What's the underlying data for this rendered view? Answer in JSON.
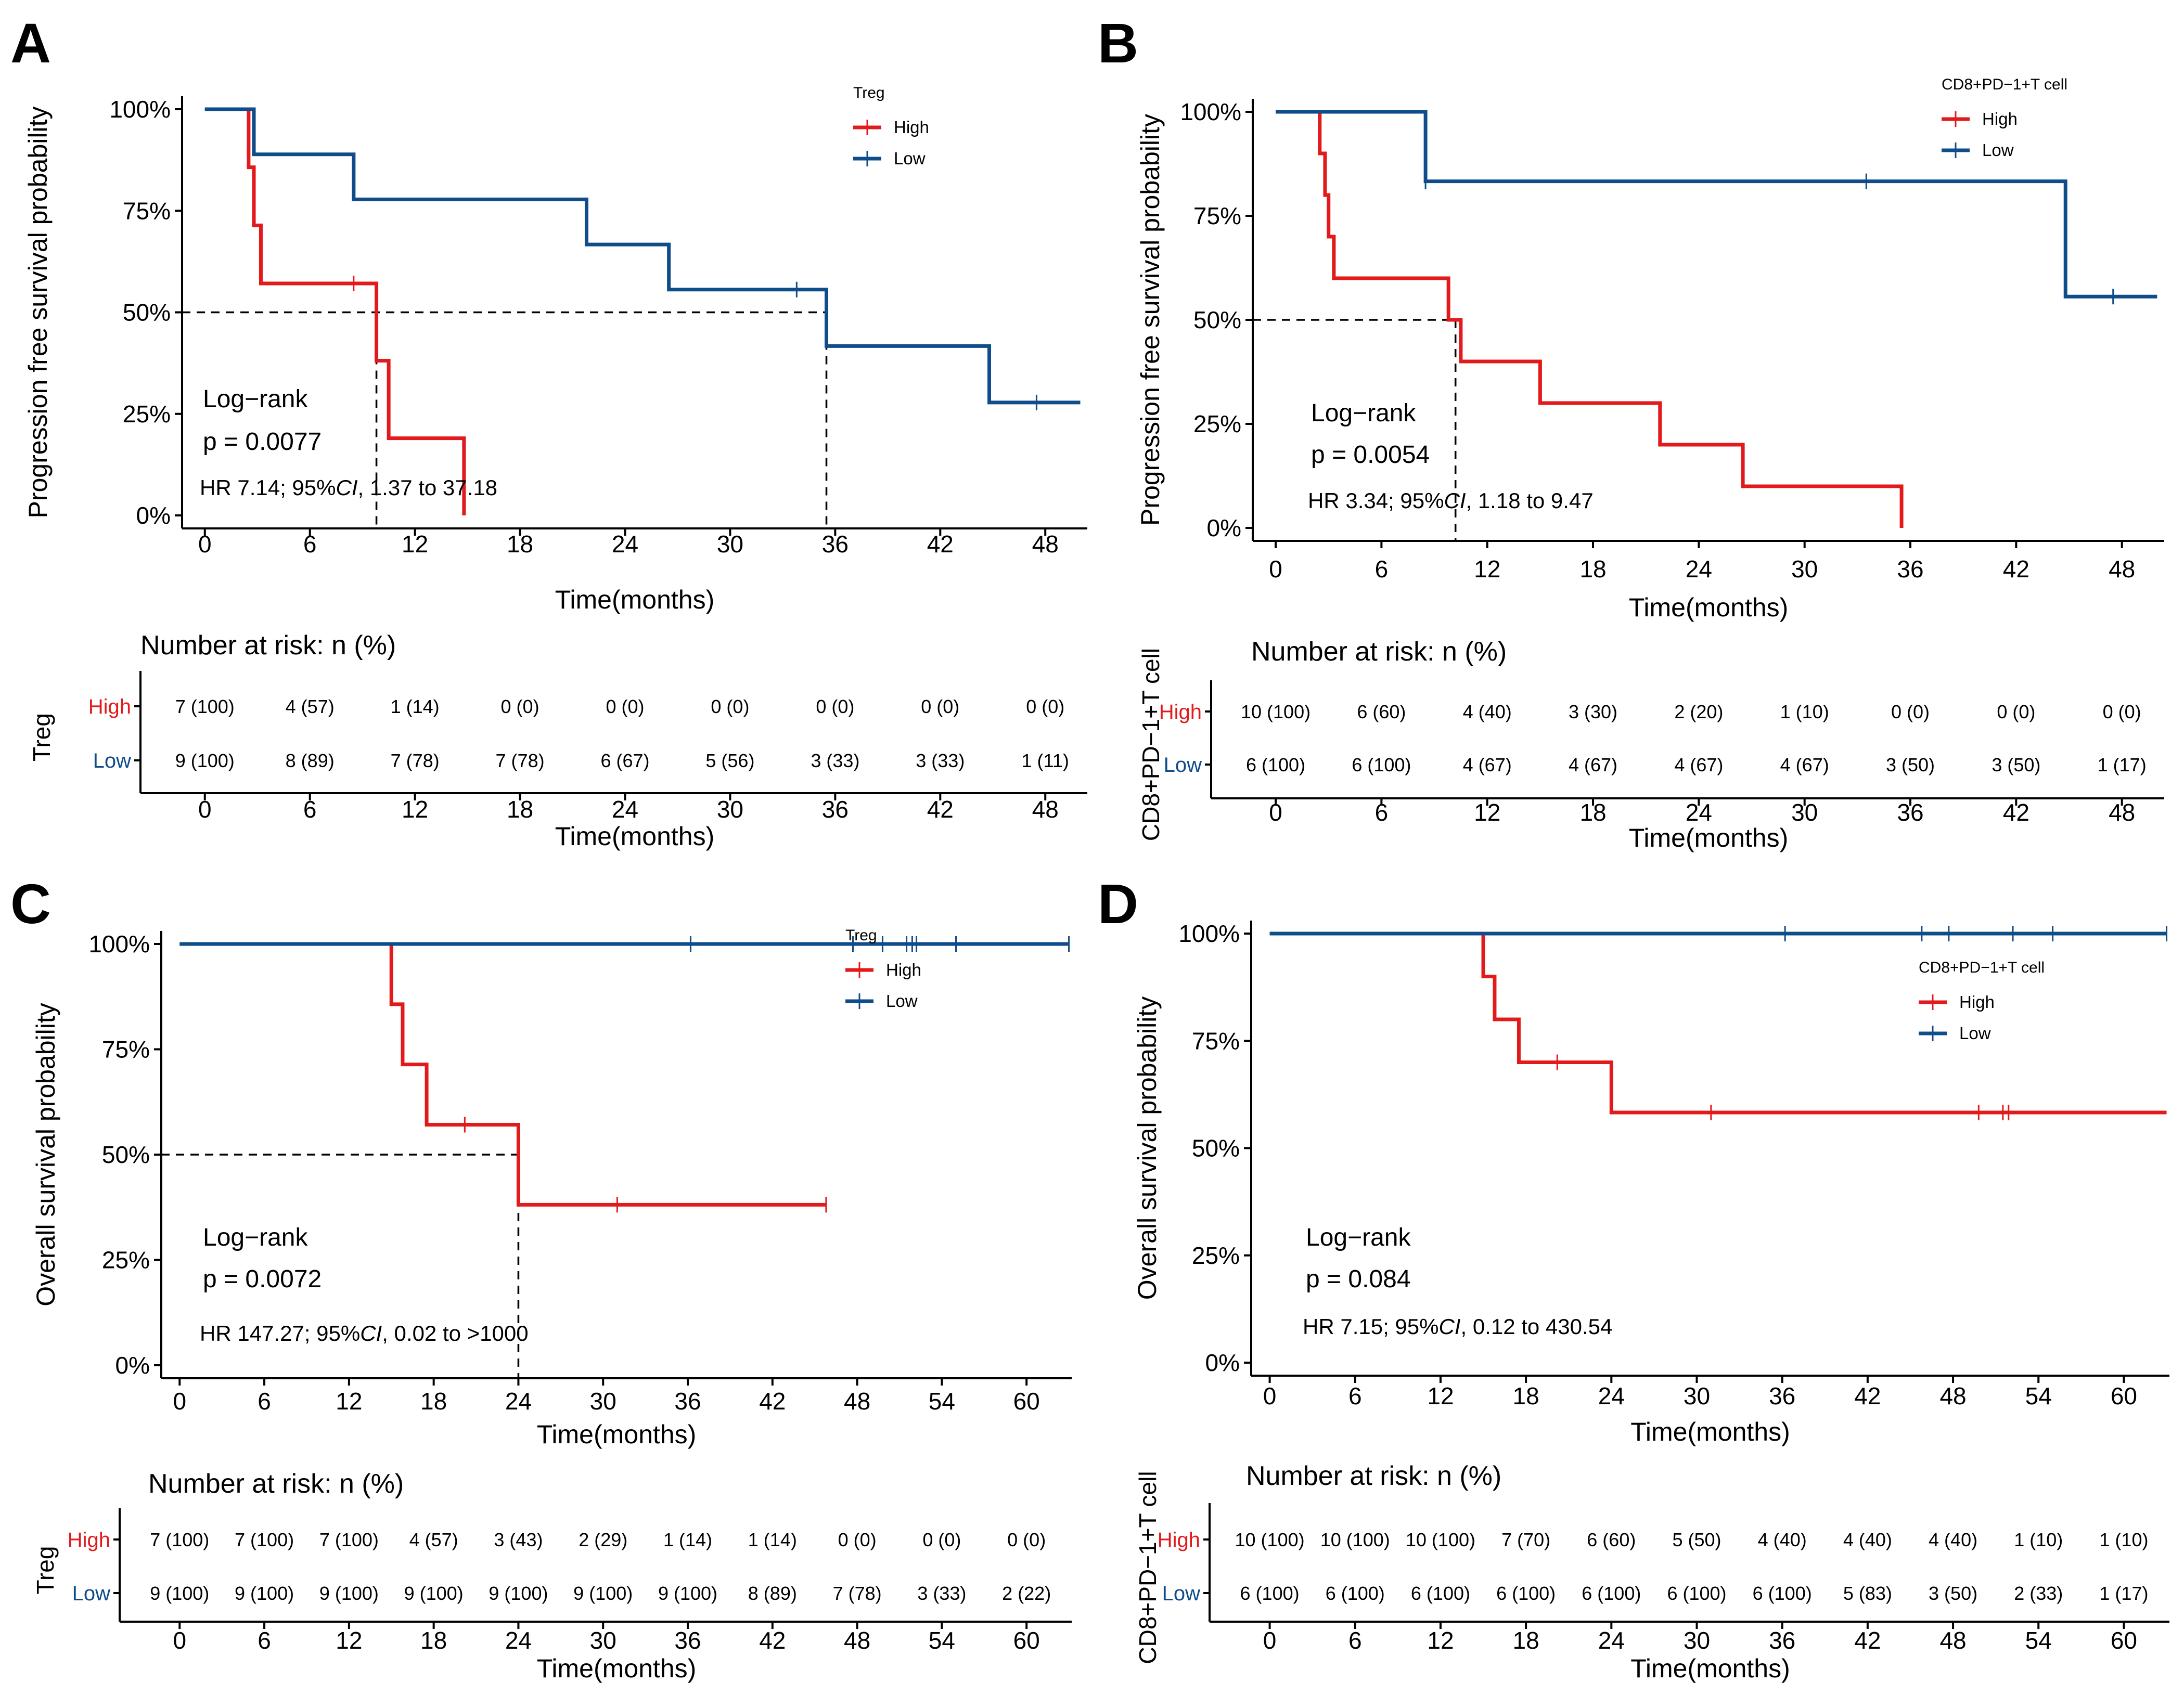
{
  "colors": {
    "high": "#e31a1c",
    "low": "#0f4c8a",
    "axis": "#000000"
  },
  "panels": [
    {
      "id": "A",
      "label": "A",
      "ylabel": "Progression free survival probability",
      "xlabel": "Time(months)",
      "xticks": [
        0,
        6,
        12,
        18,
        24,
        30,
        36,
        42,
        48
      ],
      "yticks": [
        "0%",
        "25%",
        "50%",
        "75%",
        "100%"
      ],
      "legend_title": "Treg",
      "legend_labels": [
        "High",
        "Low"
      ],
      "logrank_label": "Log−rank",
      "p_text": "p = 0.0077",
      "hr_text": "HR 7.14; 95%CI, 1.37 to 37.18",
      "risk_title": "Number at risk: n (%)",
      "risk_ylabel": "Treg",
      "risk_high": [
        "7 (100)",
        "4 (57)",
        "1 (14)",
        "0 (0)",
        "0 (0)",
        "0 (0)",
        "0 (0)",
        "0 (0)",
        "0 (0)"
      ],
      "risk_low": [
        "9 (100)",
        "8 (89)",
        "7 (78)",
        "7 (78)",
        "6 (67)",
        "5 (56)",
        "3 (33)",
        "3 (33)",
        "1 (11)"
      ]
    },
    {
      "id": "B",
      "label": "B",
      "ylabel": "Progression free survival probability",
      "xlabel": "Time(months)",
      "xticks": [
        0,
        6,
        12,
        18,
        24,
        30,
        36,
        42,
        48
      ],
      "yticks": [
        "0%",
        "25%",
        "50%",
        "75%",
        "100%"
      ],
      "legend_title": "CD8+PD−1+T cell",
      "legend_labels": [
        "High",
        "Low"
      ],
      "logrank_label": "Log−rank",
      "p_text": "p = 0.0054",
      "hr_text": "HR 3.34; 95%CI, 1.18 to 9.47",
      "risk_title": "Number at risk: n (%)",
      "risk_ylabel": "CD8+PD−1+T cell",
      "risk_high": [
        "10 (100)",
        "6 (60)",
        "4 (40)",
        "3 (30)",
        "2 (20)",
        "1 (10)",
        "0 (0)",
        "0 (0)",
        "0 (0)"
      ],
      "risk_low": [
        "6 (100)",
        "6 (100)",
        "4 (67)",
        "4 (67)",
        "4 (67)",
        "4 (67)",
        "3 (50)",
        "3 (50)",
        "1 (17)"
      ]
    },
    {
      "id": "C",
      "label": "C",
      "ylabel": "Overall survival probability",
      "xlabel": "Time(months)",
      "xticks": [
        0,
        6,
        12,
        18,
        24,
        30,
        36,
        42,
        48,
        54,
        60
      ],
      "yticks": [
        "0%",
        "25%",
        "50%",
        "75%",
        "100%"
      ],
      "legend_title": "Treg",
      "legend_labels": [
        "High",
        "Low"
      ],
      "logrank_label": "Log−rank",
      "p_text": "p = 0.0072",
      "hr_text": "HR 147.27; 95%CI,  0.02 to >1000",
      "risk_title": "Number at risk: n (%)",
      "risk_ylabel": "Treg",
      "risk_high": [
        "7 (100)",
        "7 (100)",
        "7 (100)",
        "4 (57)",
        "3 (43)",
        "2 (29)",
        "1 (14)",
        "1 (14)",
        "0 (0)",
        "0 (0)",
        "0 (0)"
      ],
      "risk_low": [
        "9 (100)",
        "9 (100)",
        "9 (100)",
        "9 (100)",
        "9 (100)",
        "9 (100)",
        "9 (100)",
        "8 (89)",
        "7 (78)",
        "3 (33)",
        "2 (22)"
      ]
    },
    {
      "id": "D",
      "label": "D",
      "ylabel": "Overall survival probability",
      "xlabel": "Time(months)",
      "xticks": [
        0,
        6,
        12,
        18,
        24,
        30,
        36,
        42,
        48,
        54,
        60
      ],
      "yticks": [
        "0%",
        "25%",
        "50%",
        "75%",
        "100%"
      ],
      "legend_title": "CD8+PD−1+T cell",
      "legend_labels": [
        "High",
        "Low"
      ],
      "logrank_label": "Log−rank",
      "p_text": "p = 0.084",
      "hr_text": "HR 7.15; 95%CI, 0.12 to 430.54",
      "risk_title": "Number at risk: n (%)",
      "risk_ylabel": "CD8+PD−1+T cell",
      "risk_high": [
        "10 (100)",
        "10 (100)",
        "10 (100)",
        "7 (70)",
        "6 (60)",
        "5 (50)",
        "4 (40)",
        "4 (40)",
        "4 (40)",
        "1 (10)",
        "1 (10)"
      ],
      "risk_low": [
        "6 (100)",
        "6 (100)",
        "6 (100)",
        "6 (100)",
        "6 (100)",
        "6 (100)",
        "6 (100)",
        "5 (83)",
        "3 (50)",
        "2 (33)",
        "1 (17)"
      ]
    }
  ],
  "chart_data": [
    {
      "type": "line",
      "subtype": "kaplan-meier step",
      "title": "A",
      "xlabel": "Time(months)",
      "ylabel": "Progression free survival probability",
      "xlim": [
        0,
        50
      ],
      "ylim": [
        0,
        1
      ],
      "legend_title": "Treg",
      "series": [
        {
          "name": "High",
          "x": [
            0,
            2.5,
            2.8,
            3.2,
            9.8,
            10.5,
            14.8
          ],
          "y": [
            1,
            0.857,
            0.714,
            0.571,
            0.381,
            0.19,
            0
          ],
          "censored": [
            [
              8.5,
              0.571
            ]
          ]
        },
        {
          "name": "Low",
          "x": [
            0,
            2.8,
            8.5,
            21.8,
            26.5,
            35.5,
            44.8,
            50
          ],
          "y": [
            1,
            0.889,
            0.778,
            0.667,
            0.556,
            0.417,
            0.278,
            0.278
          ],
          "censored": [
            [
              33.8,
              0.556
            ],
            [
              47.5,
              0.278
            ]
          ]
        }
      ],
      "median_lines": [
        9.8,
        35.5
      ]
    },
    {
      "type": "line",
      "subtype": "kaplan-meier step",
      "title": "B",
      "xlabel": "Time(months)",
      "ylabel": "Progression free survival probability",
      "xlim": [
        0,
        50
      ],
      "ylim": [
        0,
        1
      ],
      "legend_title": "CD8+PD−1+T cell",
      "series": [
        {
          "name": "High",
          "x": [
            0,
            2.5,
            2.8,
            3.0,
            3.3,
            9.8,
            10.5,
            15,
            21.8,
            26.5,
            35.5
          ],
          "y": [
            1,
            0.9,
            0.8,
            0.7,
            0.6,
            0.5,
            0.4,
            0.3,
            0.2,
            0.1,
            0
          ],
          "censored": []
        },
        {
          "name": "Low",
          "x": [
            0,
            8.5,
            44.8,
            50
          ],
          "y": [
            1,
            0.833,
            0.556,
            0.556
          ],
          "censored": [
            [
              8.5,
              0.833
            ],
            [
              33.5,
              0.833
            ],
            [
              47.5,
              0.556
            ]
          ]
        }
      ],
      "median_lines": [
        10.2
      ]
    },
    {
      "type": "line",
      "subtype": "kaplan-meier step",
      "title": "C",
      "xlabel": "Time(months)",
      "ylabel": "Overall survival probability",
      "xlim": [
        0,
        63
      ],
      "ylim": [
        0,
        1
      ],
      "legend_title": "Treg",
      "series": [
        {
          "name": "High",
          "x": [
            0,
            15,
            15.8,
            17.5,
            24,
            45.8
          ],
          "y": [
            1,
            0.857,
            0.714,
            0.571,
            0.381,
            0.381
          ],
          "censored": [
            [
              20.2,
              0.571
            ],
            [
              31,
              0.381
            ],
            [
              45.8,
              0.381
            ]
          ]
        },
        {
          "name": "Low",
          "x": [
            0,
            63
          ],
          "y": [
            1,
            1
          ],
          "censored": [
            [
              36.2,
              1
            ],
            [
              47.7,
              1
            ],
            [
              49.8,
              1
            ],
            [
              51.5,
              1
            ],
            [
              51.9,
              1
            ],
            [
              52.2,
              1
            ],
            [
              55,
              1
            ],
            [
              63,
              1
            ]
          ]
        }
      ],
      "median_lines": [
        24
      ]
    },
    {
      "type": "line",
      "subtype": "kaplan-meier step",
      "title": "D",
      "xlabel": "Time(months)",
      "ylabel": "Overall survival probability",
      "xlim": [
        0,
        63
      ],
      "ylim": [
        0,
        1
      ],
      "legend_title": "CD8+PD−1+T cell",
      "series": [
        {
          "name": "High",
          "x": [
            0,
            15,
            15.8,
            17.5,
            24,
            63
          ],
          "y": [
            1,
            0.9,
            0.8,
            0.7,
            0.583,
            0.583
          ],
          "censored": [
            [
              20.2,
              0.7
            ],
            [
              31,
              0.583
            ],
            [
              49.8,
              0.583
            ],
            [
              51.5,
              0.583
            ],
            [
              51.9,
              0.583
            ]
          ]
        },
        {
          "name": "Low",
          "x": [
            0,
            63
          ],
          "y": [
            1,
            1
          ],
          "censored": [
            [
              36.2,
              1
            ],
            [
              45.8,
              1
            ],
            [
              47.7,
              1
            ],
            [
              52.2,
              1
            ],
            [
              55,
              1
            ],
            [
              63,
              1
            ]
          ]
        }
      ],
      "median_lines": []
    }
  ]
}
